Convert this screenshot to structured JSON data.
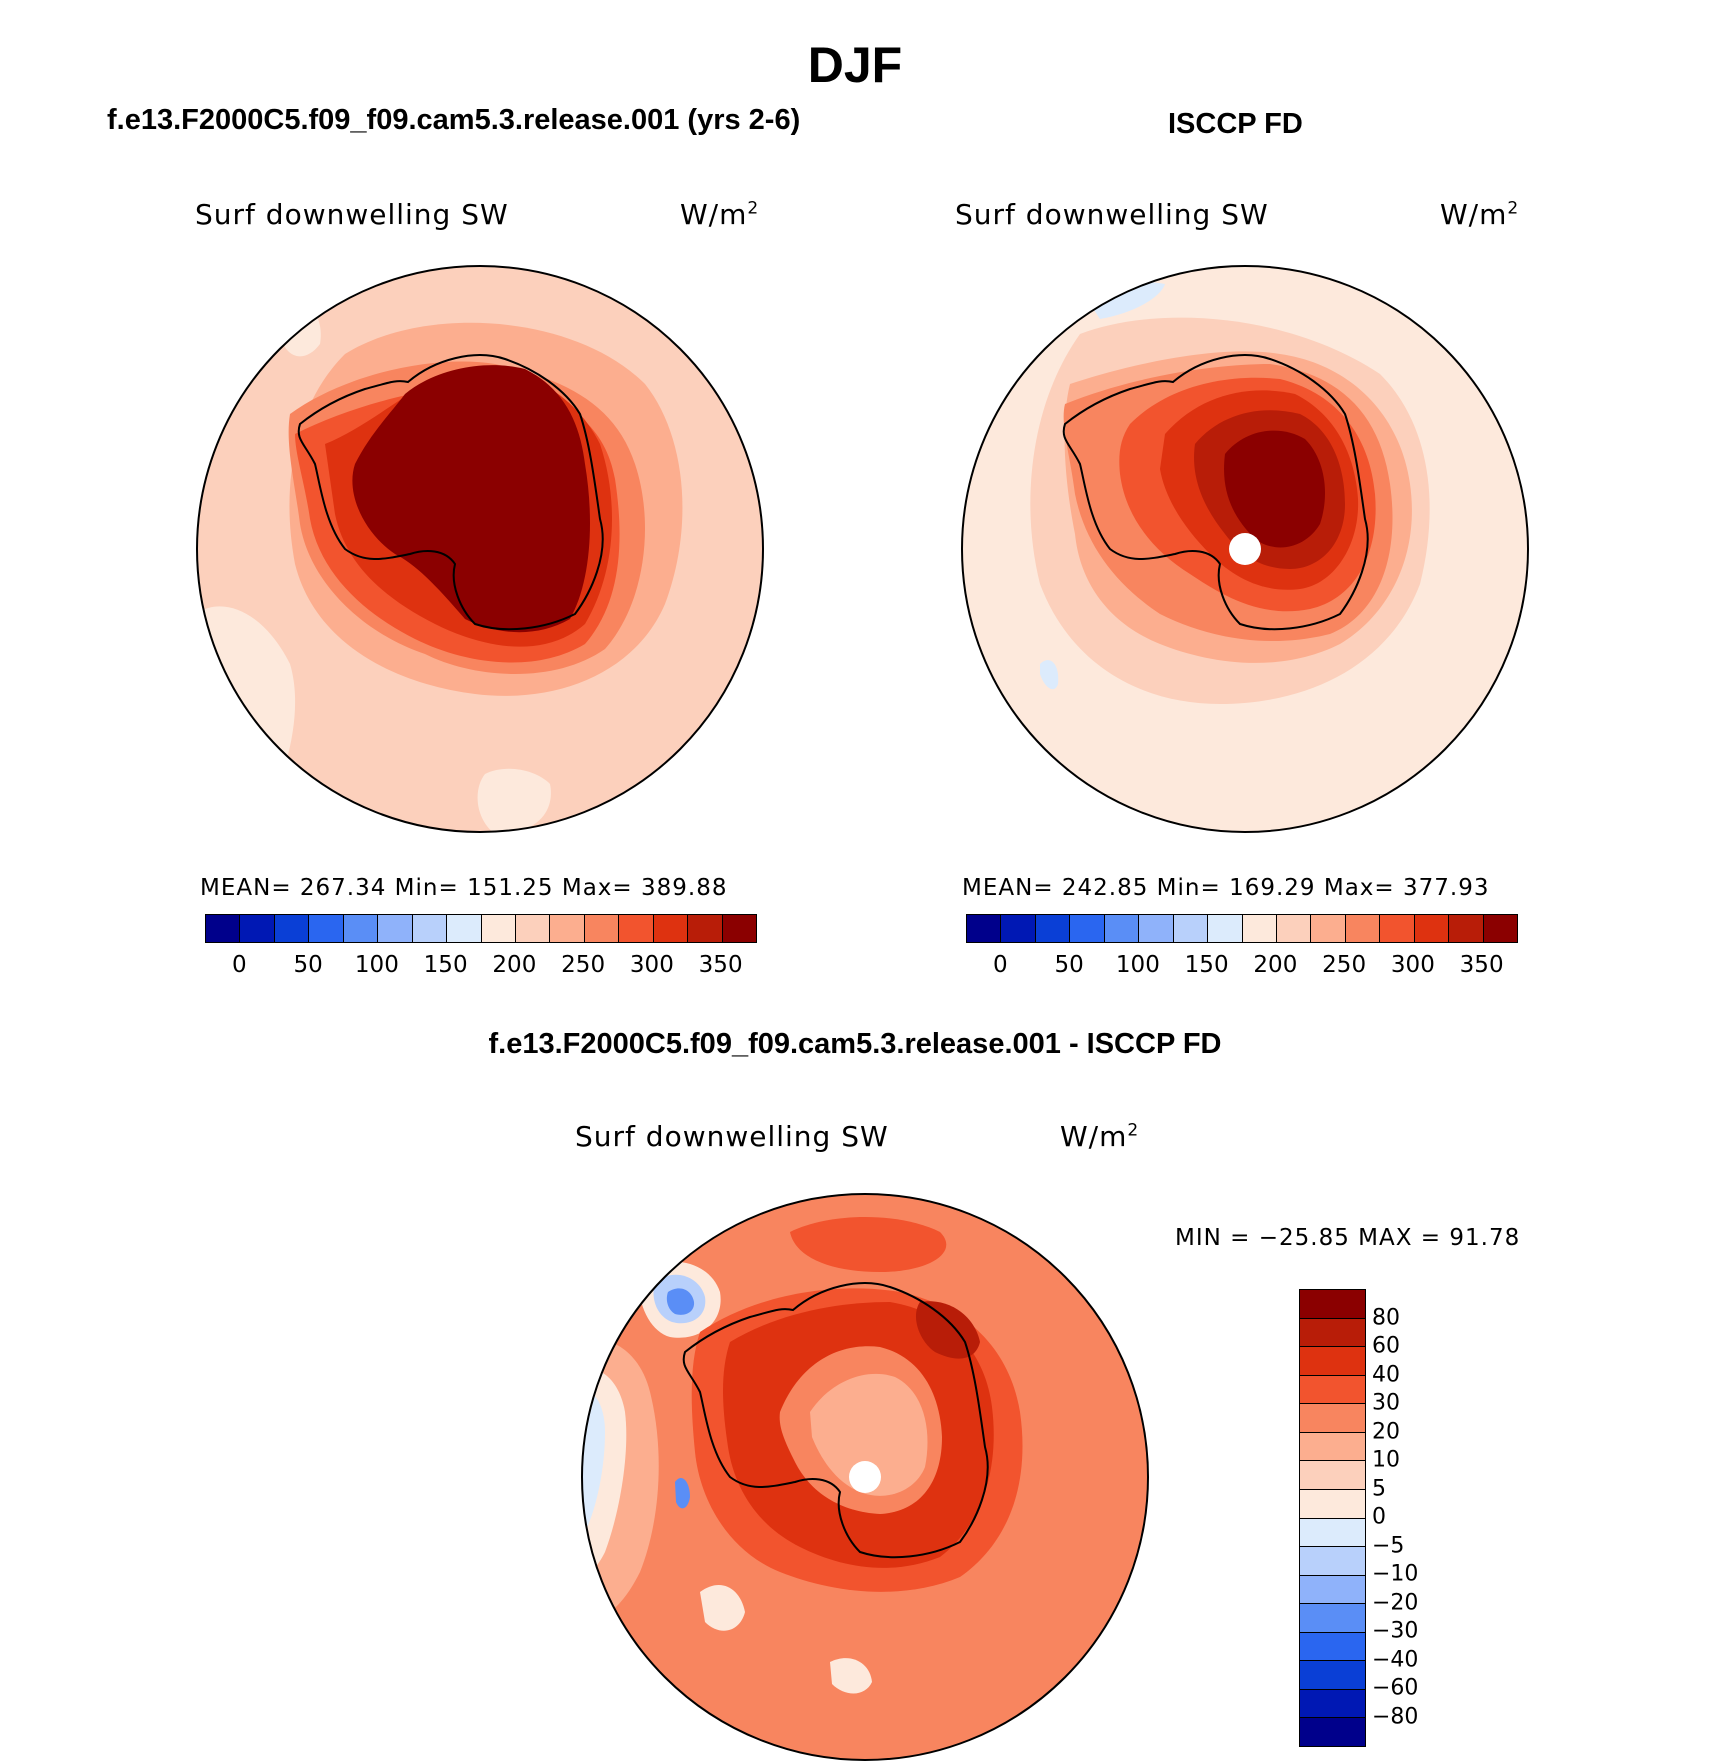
{
  "title": "DJF",
  "panels": [
    {
      "heading": "f.e13.F2000C5.f09_f09.cam5.3.release.001 (yrs 2-6)",
      "variable": "Surf downwelling SW",
      "units": "W/m",
      "units_sup": "2",
      "stats": "MEAN= 267.34   Min= 151.25   Max= 389.88"
    },
    {
      "heading": "ISCCP FD",
      "variable": "Surf downwelling SW",
      "units": "W/m",
      "units_sup": "2",
      "stats": "MEAN= 242.85   Min= 169.29   Max= 377.93"
    },
    {
      "heading": "f.e13.F2000C5.f09_f09.cam5.3.release.001 - ISCCP FD",
      "variable": "Surf downwelling SW",
      "units": "W/m",
      "units_sup": "2",
      "stats": "MIN = −25.85 MAX =   91.78"
    }
  ],
  "abs_colorbar": {
    "colors": [
      "#00008b",
      "#0018b4",
      "#0a3fd6",
      "#2a66f0",
      "#5a8ef6",
      "#8fb2fa",
      "#b8d0fb",
      "#dcebfc",
      "#fde9dc",
      "#fcd0bc",
      "#fcae8f",
      "#f8855f",
      "#f2542e",
      "#de3210",
      "#b81d08",
      "#8b0000"
    ],
    "labels": [
      "0",
      "50",
      "100",
      "150",
      "200",
      "250",
      "300",
      "350"
    ]
  },
  "diff_colorbar": {
    "colors": [
      "#8b0000",
      "#b81d08",
      "#de3210",
      "#f2542e",
      "#f8855f",
      "#fcae8f",
      "#fcd0bc",
      "#fde9dc",
      "#dcebfc",
      "#b8d0fb",
      "#8fb2fa",
      "#5a8ef6",
      "#2a66f0",
      "#0a3fd6",
      "#0018b4",
      "#00008b"
    ],
    "labels": [
      "80",
      "60",
      "40",
      "30",
      "20",
      "10",
      "5",
      "0",
      "−5",
      "−10",
      "−20",
      "−30",
      "−40",
      "−60",
      "−80"
    ]
  },
  "colors": {
    "c200": "#fde9dc",
    "c225": "#fcd0bc",
    "c250": "#fcae8f",
    "c275": "#f8855f",
    "c300": "#f2542e",
    "c325": "#de3210",
    "c350": "#b81d08",
    "c375": "#8b0000",
    "cneg5": "#dcebfc",
    "cneg10": "#b8d0fb",
    "cneg20": "#8fb2fa",
    "cneg30": "#5a8ef6"
  }
}
